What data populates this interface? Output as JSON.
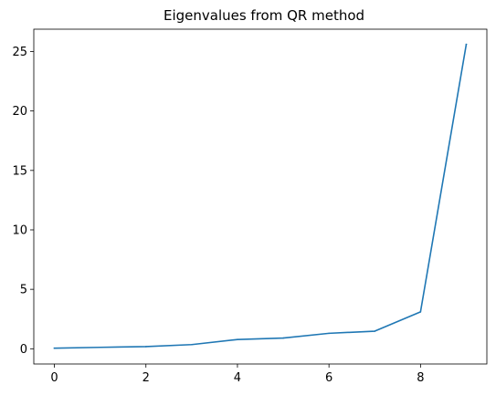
{
  "chart_data": {
    "type": "line",
    "title": "Eigenvalues from QR method",
    "xlabel": "",
    "ylabel": "",
    "x": [
      0,
      1,
      2,
      3,
      4,
      5,
      6,
      7,
      8,
      9
    ],
    "series": [
      {
        "values": [
          0.05,
          0.12,
          0.18,
          0.35,
          0.78,
          0.9,
          1.3,
          1.48,
          3.1,
          25.6
        ],
        "color": "#1f77b4"
      }
    ],
    "xlim": [
      -0.45,
      9.45
    ],
    "ylim": [
      -1.28,
      26.88
    ],
    "xticks": [
      0,
      2,
      4,
      6,
      8
    ],
    "yticks": [
      0,
      5,
      10,
      15,
      20,
      25
    ],
    "grid": false,
    "legend": "none"
  }
}
